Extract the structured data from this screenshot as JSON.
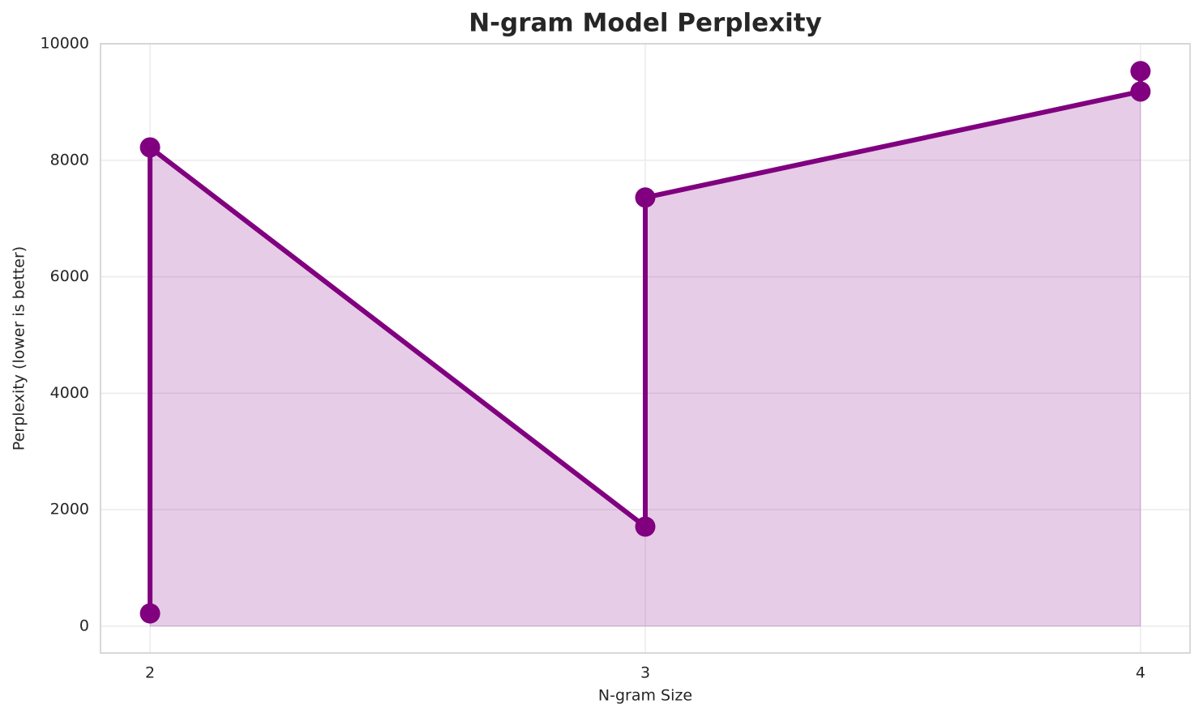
{
  "chart_data": {
    "type": "line",
    "title": "N-gram Model Perplexity",
    "x_label": "N-gram Size",
    "y_label": "Perplexity (lower is better)",
    "x": [
      2,
      2,
      3,
      3,
      4,
      4
    ],
    "values": [
      220,
      8220,
      1710,
      7360,
      9180,
      9530
    ],
    "color": "#800080",
    "fill": true,
    "xlim": [
      1.9,
      4.1
    ],
    "xticks": [
      2,
      3,
      4
    ],
    "ylim": [
      -460,
      10000
    ],
    "yticks": [
      0,
      2000,
      4000,
      6000,
      8000,
      10000
    ],
    "grid": true
  }
}
